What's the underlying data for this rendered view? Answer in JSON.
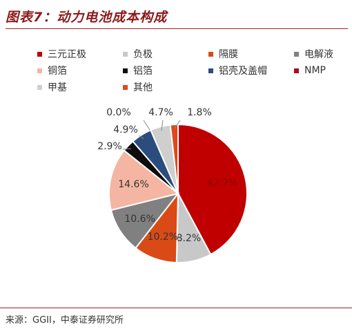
{
  "header": {
    "title": "图表7：动力电池成本构成"
  },
  "footer": {
    "source": "来源：GGII，中泰证券研究所"
  },
  "chart_data": {
    "type": "pie",
    "title": "图表7：动力电池成本构成",
    "legend_position": "top",
    "slices": [
      {
        "name": "三元正极",
        "value": 42.2,
        "label": "42.2%",
        "color": "#c00000"
      },
      {
        "name": "负极",
        "value": 8.2,
        "label": "8.2%",
        "color": "#c8c8c8"
      },
      {
        "name": "隔膜",
        "value": 10.2,
        "label": "10.2%",
        "color": "#d94a17"
      },
      {
        "name": "电解液",
        "value": 10.6,
        "label": "10.6%",
        "color": "#808080"
      },
      {
        "name": "铜箔",
        "value": 14.6,
        "label": "14.6%",
        "color": "#f4b6a3"
      },
      {
        "name": "铝箔",
        "value": 2.9,
        "label": "2.9%",
        "color": "#0d0d0d"
      },
      {
        "name": "铝壳及盖帽",
        "value": 4.9,
        "label": "4.9%",
        "color": "#2b4d7d"
      },
      {
        "name": "NMP",
        "value": 0.0,
        "label": "0.0%",
        "color": "#a30d2a"
      },
      {
        "name": "甲基",
        "value": 4.7,
        "label": "4.7%",
        "color": "#cfcfcf"
      },
      {
        "name": "其他",
        "value": 1.8,
        "label": "1.8%",
        "color": "#e0481a"
      }
    ]
  }
}
